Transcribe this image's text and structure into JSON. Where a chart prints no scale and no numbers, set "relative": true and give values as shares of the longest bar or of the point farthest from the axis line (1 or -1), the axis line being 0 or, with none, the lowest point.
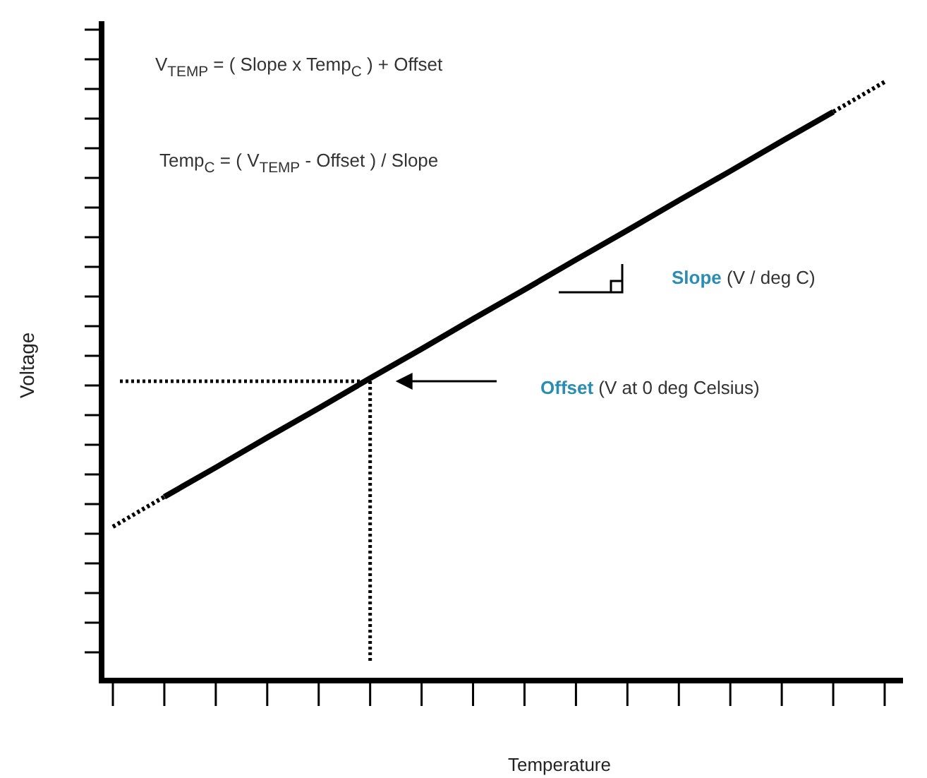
{
  "chart_data": {
    "type": "line",
    "relative": true,
    "xlabel": "Temperature",
    "ylabel": "Voltage",
    "categories": [
      null,
      null,
      null,
      null,
      null,
      null,
      null,
      null,
      null,
      null,
      null,
      null,
      null,
      null,
      null,
      null
    ],
    "series": [
      {
        "color": "#000000",
        "line_style": "dotted",
        "values": [
          0.257,
          0.307,
          null,
          null,
          null,
          null,
          null,
          null,
          null,
          null,
          null,
          null,
          null,
          null,
          null,
          null
        ]
      },
      {
        "color": "#000000",
        "line_style": "solid",
        "values": [
          null,
          0.307,
          0.356,
          0.406,
          0.455,
          0.505,
          0.554,
          0.604,
          0.653,
          0.703,
          0.752,
          0.802,
          0.851,
          0.901,
          0.95,
          null
        ]
      },
      {
        "color": "#000000",
        "line_style": "dotted",
        "values": [
          null,
          null,
          null,
          null,
          null,
          null,
          null,
          null,
          null,
          null,
          null,
          null,
          null,
          null,
          0.95,
          1
        ]
      }
    ],
    "annotations": [
      "V$_{TEMP}$ = ( Slope x Temp$_{C}$ ) + Offset",
      "Temp$_{C}$ = ( V$_{TEMP}$ - Offset ) / Slope",
      "Slope (V / deg C)",
      "Offset (V at 0 deg Celsius)"
    ]
  }
}
